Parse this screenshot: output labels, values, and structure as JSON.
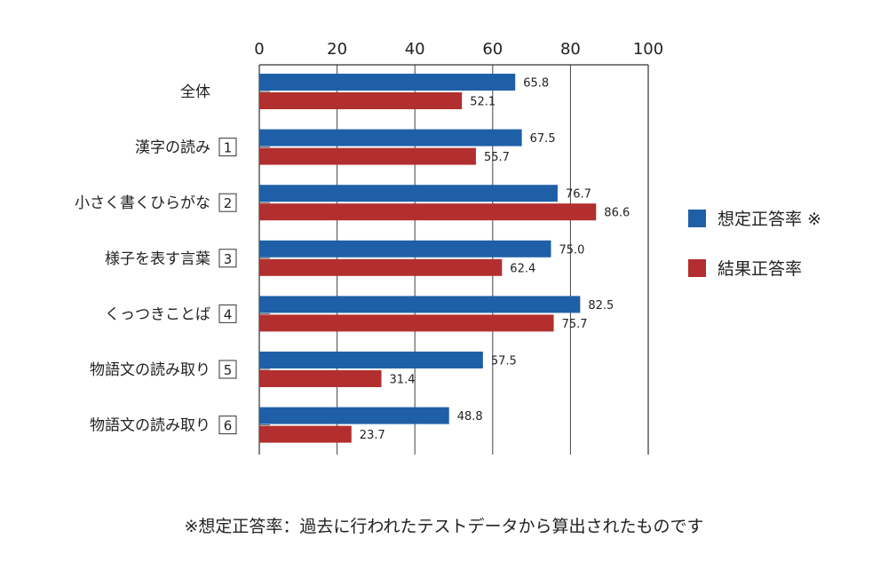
{
  "chart_data": {
    "type": "bar",
    "orientation": "horizontal",
    "xlim": [
      0,
      100
    ],
    "x_ticks": [
      "0",
      "20",
      "40",
      "60",
      "80",
      "100"
    ],
    "grid": true,
    "categories": [
      {
        "label": "全体",
        "num": ""
      },
      {
        "label": "漢字の読み",
        "num": "1"
      },
      {
        "label": "小さく書くひらがな",
        "num": "2"
      },
      {
        "label": "様子を表す言葉",
        "num": "3"
      },
      {
        "label": "くっつきことば",
        "num": "4"
      },
      {
        "label": "物語文の読み取り",
        "num": "5"
      },
      {
        "label": "物語文の読み取り",
        "num": "6"
      }
    ],
    "series": [
      {
        "name": "想定正答率 ※",
        "color": "#1f5fa8",
        "values": [
          65.8,
          67.5,
          76.7,
          75.0,
          82.5,
          57.5,
          48.8
        ],
        "labels": [
          "65.8",
          "67.5",
          "76.7",
          "75.0",
          "82.5",
          "57.5",
          "48.8"
        ]
      },
      {
        "name": "結果正答率",
        "color": "#b32f2f",
        "values": [
          52.1,
          55.7,
          86.6,
          62.4,
          75.7,
          31.4,
          23.7
        ],
        "labels": [
          "52.1",
          "55.7",
          "86.6",
          "62.4",
          "75.7",
          "31.4",
          "23.7"
        ]
      }
    ],
    "legend_position": "right"
  },
  "footnote": "※想定正答率：過去に行われたテストデータから算出されたものです"
}
